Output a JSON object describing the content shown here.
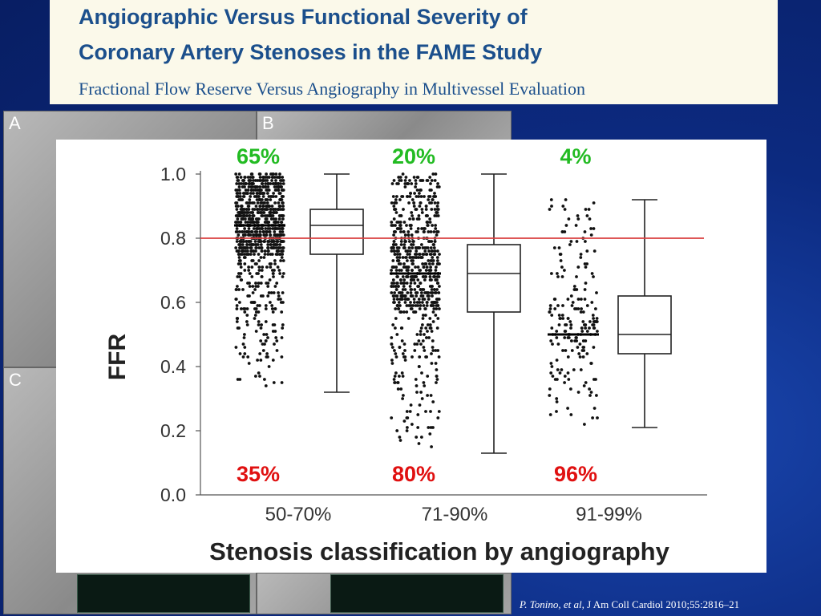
{
  "header": {
    "title_line1": "Angiographic Versus Functional Severity of",
    "title_line2": "Coronary Artery Stenoses in the FAME Study",
    "subtitle": "Fractional Flow Reserve Versus Angiography in Multivessel Evaluation"
  },
  "panels": {
    "a": "A",
    "b": "B",
    "c": "C"
  },
  "citation": {
    "authors": "P. Tonino, et al,",
    "journal": " J Am Coll Cardiol 2010;55:2816–21"
  },
  "colors": {
    "top_percent": "#22bb22",
    "bottom_percent": "#e01010",
    "threshold_line": "#d94040",
    "header_text": "#1b4f8c"
  },
  "chart_data": {
    "type": "box-and-dot",
    "xlabel": "Stenosis classification by angiography",
    "ylabel": "FFR",
    "ylim": [
      0.0,
      1.0
    ],
    "yticks": [
      "0.0",
      "0.2",
      "0.4",
      "0.6",
      "0.8",
      "1.0"
    ],
    "threshold": 0.8,
    "categories": [
      "50-70%",
      "71-90%",
      "91-99%"
    ],
    "top_labels": [
      "65%",
      "20%",
      "4%"
    ],
    "bottom_labels": [
      "35%",
      "80%",
      "96%"
    ],
    "boxes": [
      {
        "category": "50-70%",
        "min": 0.32,
        "q1": 0.75,
        "median": 0.84,
        "q3": 0.89,
        "max": 1.0
      },
      {
        "category": "71-90%",
        "min": 0.13,
        "q1": 0.57,
        "median": 0.69,
        "q3": 0.78,
        "max": 1.0
      },
      {
        "category": "91-99%",
        "min": 0.21,
        "q1": 0.44,
        "median": 0.5,
        "q3": 0.62,
        "max": 0.92
      }
    ],
    "dot_ranges": [
      {
        "category": "50-70%",
        "min": 0.32,
        "max": 1.0
      },
      {
        "category": "71-90%",
        "min": 0.13,
        "max": 1.0
      },
      {
        "category": "91-99%",
        "min": 0.21,
        "max": 0.92
      }
    ]
  }
}
